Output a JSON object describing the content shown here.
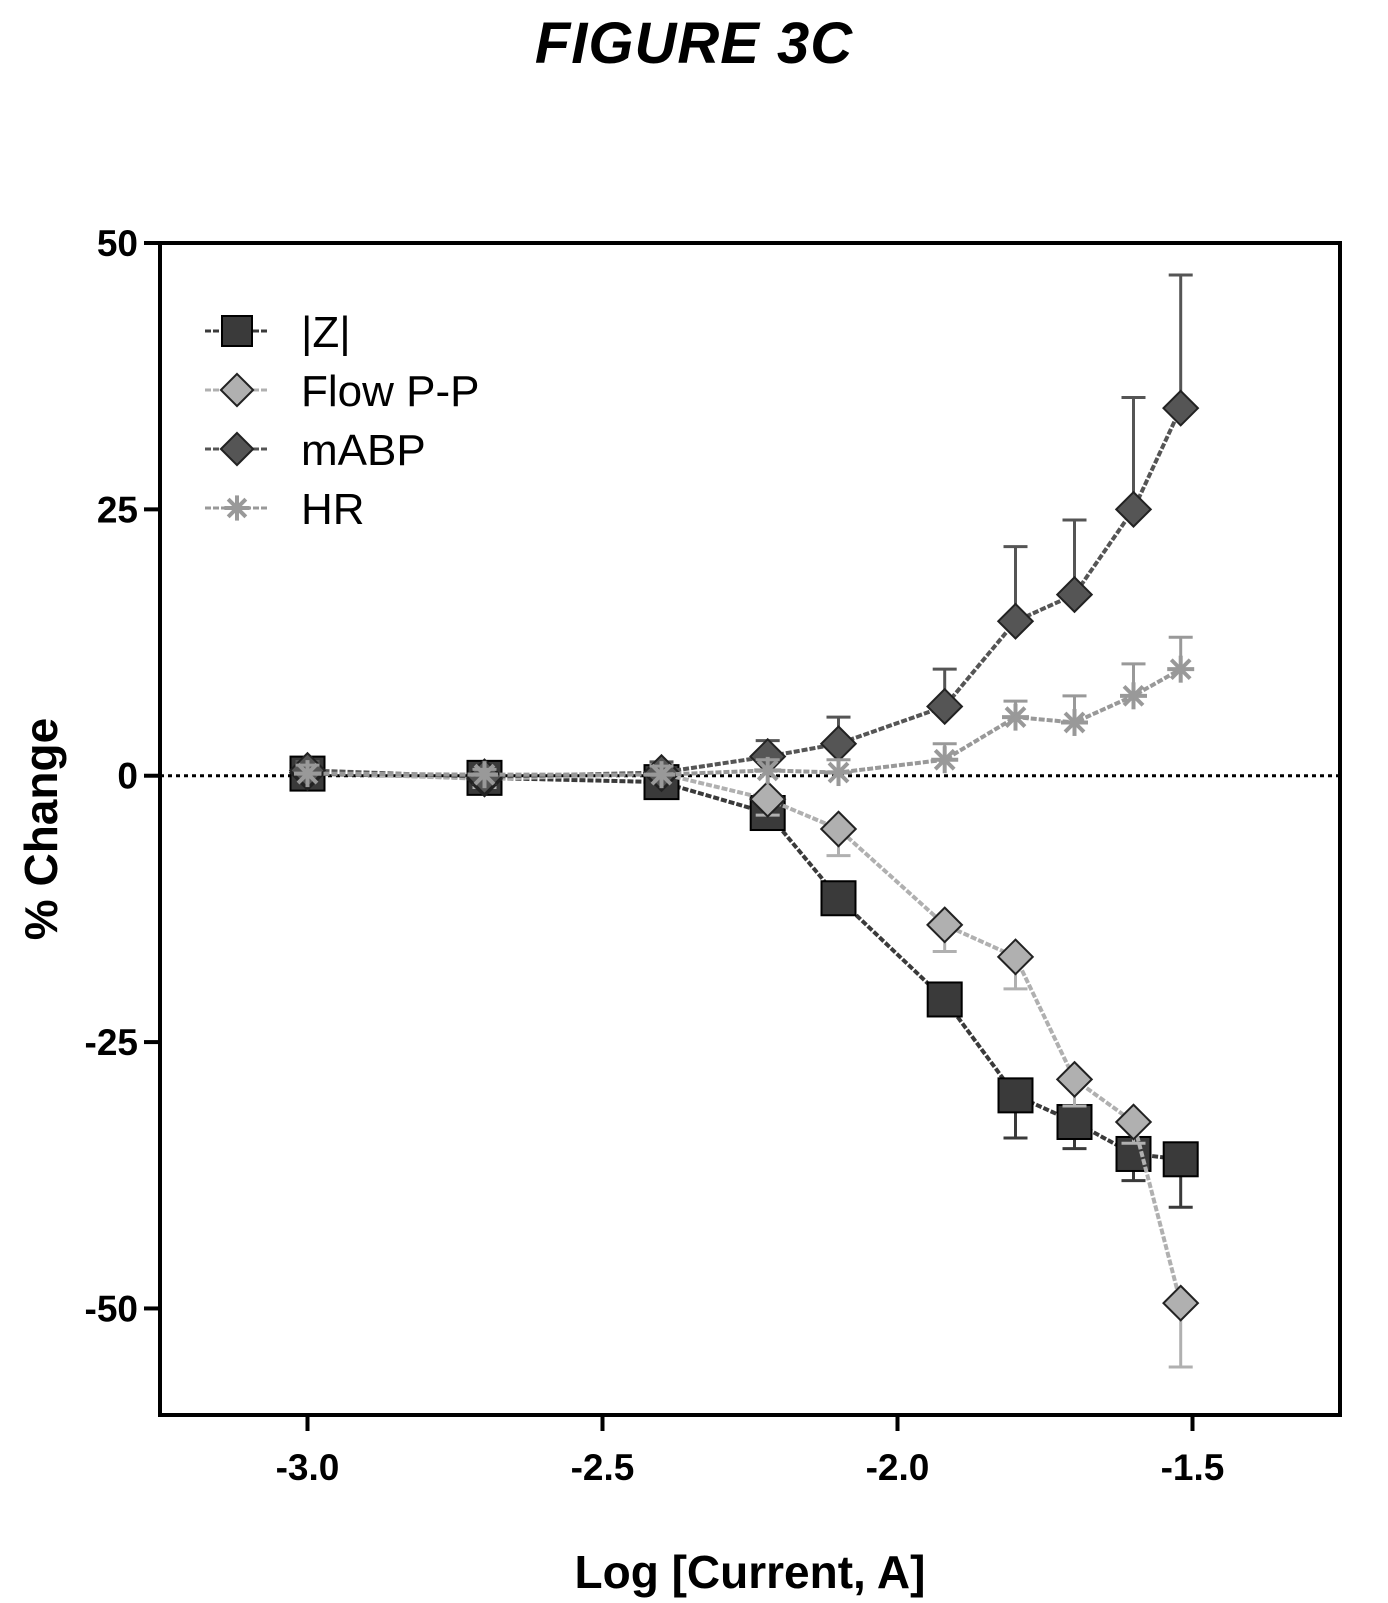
{
  "figure_title": "FIGURE 3C",
  "chart_data": {
    "type": "line",
    "title": "",
    "xlabel": "Log [Current, A]",
    "ylabel": "% Change",
    "xlim": [
      -3.25,
      -1.25
    ],
    "ylim": [
      -60,
      50
    ],
    "xticks": [
      -3.0,
      -2.5,
      -2.0,
      -1.5
    ],
    "xtick_labels": [
      "-3.0",
      "-2.5",
      "-2.0",
      "-1.5"
    ],
    "yticks": [
      50,
      25,
      0,
      -25,
      -50
    ],
    "ytick_labels": [
      "50",
      "25",
      "0",
      "-25",
      "-50"
    ],
    "zero_line": "dotted",
    "grid": false,
    "legend_position": "top-left",
    "series": [
      {
        "name": "|Z|",
        "marker": "square",
        "color": "#3a3a3a",
        "x": [
          -3.0,
          -2.7,
          -2.4,
          -2.22,
          -2.1,
          -1.92,
          -1.8,
          -1.7,
          -1.6,
          -1.52
        ],
        "y": [
          0.2,
          -0.2,
          -0.6,
          -3.5,
          -11.5,
          -21,
          -30,
          -32.5,
          -35.5,
          -36
        ],
        "err": [
          1,
          0.8,
          1.5,
          1.2,
          1.5,
          1.5,
          4,
          2.5,
          2.5,
          4.5
        ]
      },
      {
        "name": "Flow P-P",
        "marker": "diamond",
        "color": "#b0b0b0",
        "x": [
          -3.0,
          -2.7,
          -2.4,
          -2.22,
          -2.1,
          -1.92,
          -1.8,
          -1.7,
          -1.6,
          -1.52
        ],
        "y": [
          0.3,
          -0.3,
          0.2,
          -2.2,
          -5,
          -14,
          -17,
          -28.5,
          -32.5,
          -49.5
        ],
        "err": [
          1,
          0.8,
          1,
          1.5,
          2.5,
          2.5,
          3,
          2.5,
          2,
          6
        ]
      },
      {
        "name": "mABP",
        "marker": "diamond",
        "color": "#555555",
        "x": [
          -3.0,
          -2.7,
          -2.4,
          -2.22,
          -2.1,
          -1.92,
          -1.8,
          -1.7,
          -1.6,
          -1.52
        ],
        "y": [
          0.5,
          -0.1,
          0.3,
          1.8,
          3,
          6.5,
          14.5,
          17,
          25,
          34.5
        ],
        "err": [
          0.8,
          0.6,
          1,
          1.5,
          2.5,
          3.5,
          7,
          7,
          10.5,
          12.5
        ]
      },
      {
        "name": "HR",
        "marker": "asterisk",
        "color": "#999999",
        "x": [
          -3.0,
          -2.7,
          -2.4,
          -2.22,
          -2.1,
          -1.92,
          -1.8,
          -1.7,
          -1.6,
          -1.52
        ],
        "y": [
          0.2,
          0.1,
          0.1,
          0.5,
          0.3,
          1.5,
          5.5,
          5,
          7.5,
          10
        ],
        "err": [
          0.8,
          0.5,
          0.8,
          1,
          1.2,
          1.5,
          1.5,
          2.5,
          3,
          3
        ]
      }
    ]
  }
}
